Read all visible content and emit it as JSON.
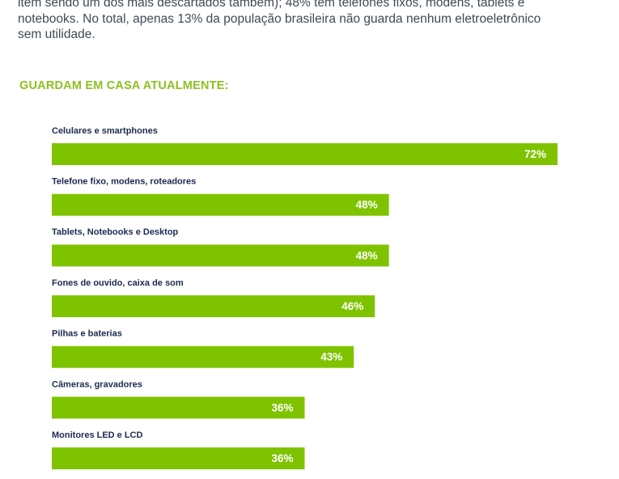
{
  "intro": {
    "lines": [
      "item sendo um dos mais descartados também); 48% têm telefones fixos, modens, tablets e",
      "notebooks. No total, apenas 13% da população brasileira não guarda nenhum eletroeletrônico",
      "sem utilidade."
    ]
  },
  "section_title": "GUARDAM EM CASA ATUALMENTE:",
  "chart_data": {
    "type": "bar",
    "orientation": "horizontal",
    "title": "GUARDAM EM CASA ATUALMENTE:",
    "categories": [
      "Celulares e smartphones",
      "Telefone fixo, modens, roteadores",
      "Tablets, Notebooks e Desktop",
      "Fones de ouvido, caixa de som",
      "Pilhas e baterias",
      "Câmeras, gravadores",
      "Monitores LED e LCD"
    ],
    "values": [
      72,
      48,
      48,
      46,
      43,
      36,
      36
    ],
    "value_labels": [
      "72%",
      "48%",
      "48%",
      "46%",
      "43%",
      "36%",
      "36%"
    ],
    "unit": "%",
    "bar_color": "#7fc300",
    "label_color": "#1c2a50",
    "value_label_color": "#ffffff",
    "grid": false,
    "legend": false
  }
}
